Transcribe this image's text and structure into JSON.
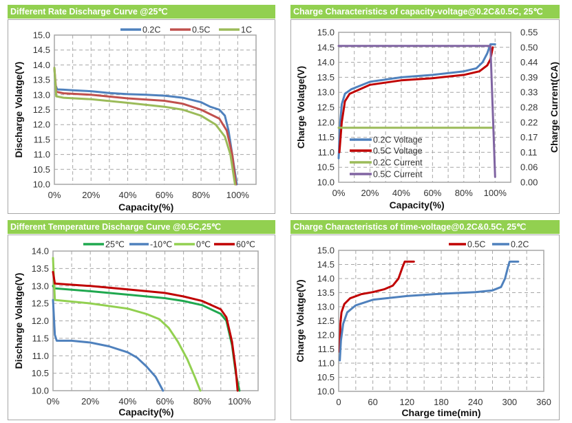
{
  "colors": {
    "header_bg": "#92d050",
    "blue": "#4f81bd",
    "red": "#c00000",
    "light_red": "#c0504d",
    "green": "#9bbb59",
    "purple": "#8064a2",
    "dark_green": "#1fa84f",
    "light_green": "#92d050"
  },
  "chart_data": [
    {
      "type": "line",
      "title": "Different Rate Discharge Curve @25℃",
      "xlabel": "Capacity(%)",
      "ylabel": "Discharge Volatge(V)",
      "xlim": [
        0,
        110
      ],
      "ylim": [
        10,
        15
      ],
      "xticks": [
        "0%",
        "20%",
        "40%",
        "60%",
        "80%",
        "100%"
      ],
      "yticks": [
        "10.0",
        "10.5",
        "11.0",
        "11.5",
        "12.0",
        "12.5",
        "13.0",
        "13.5",
        "14.0",
        "14.5",
        "15.0"
      ],
      "grid": true,
      "legend": "top",
      "series": [
        {
          "name": "0.2C",
          "color": "#4f81bd",
          "points": [
            [
              0,
              13.9
            ],
            [
              0.5,
              13.35
            ],
            [
              1.5,
              13.18
            ],
            [
              5,
              13.17
            ],
            [
              10,
              13.15
            ],
            [
              20,
              13.12
            ],
            [
              30,
              13.06
            ],
            [
              40,
              13.02
            ],
            [
              50,
              13.0
            ],
            [
              60,
              12.97
            ],
            [
              70,
              12.9
            ],
            [
              80,
              12.75
            ],
            [
              85,
              12.6
            ],
            [
              90,
              12.5
            ],
            [
              93,
              12.3
            ],
            [
              95,
              11.8
            ],
            [
              97,
              11.0
            ],
            [
              99.5,
              10.0
            ]
          ]
        },
        {
          "name": "0.5C",
          "color": "#c0504d",
          "points": [
            [
              0,
              13.9
            ],
            [
              1,
              13.1
            ],
            [
              5,
              13.05
            ],
            [
              20,
              13.0
            ],
            [
              40,
              12.88
            ],
            [
              60,
              12.8
            ],
            [
              70,
              12.7
            ],
            [
              80,
              12.5
            ],
            [
              90,
              12.2
            ],
            [
              94,
              11.8
            ],
            [
              97,
              11.0
            ],
            [
              99,
              10.0
            ]
          ]
        },
        {
          "name": "1C",
          "color": "#9bbb59",
          "points": [
            [
              0,
              13.9
            ],
            [
              1,
              12.95
            ],
            [
              5,
              12.9
            ],
            [
              20,
              12.85
            ],
            [
              40,
              12.73
            ],
            [
              60,
              12.6
            ],
            [
              70,
              12.5
            ],
            [
              80,
              12.3
            ],
            [
              88,
              12.0
            ],
            [
              93,
              11.6
            ],
            [
              96,
              11.0
            ],
            [
              98.5,
              10.0
            ]
          ]
        }
      ]
    },
    {
      "type": "line",
      "title": "Charge  Characteristics of capacity-voltage@0.2C&0.5C, 25℃",
      "xlabel": "Capacity(%)",
      "ylabel": "Charge Volatge(V)",
      "y2label": "Charge Current(CA)",
      "xlim": [
        0,
        110
      ],
      "ylim": [
        10,
        15
      ],
      "y2lim": [
        0,
        0.55
      ],
      "xticks": [
        "0%",
        "20%",
        "40%",
        "60%",
        "80%",
        "100%"
      ],
      "yticks": [
        "10.0",
        "10.5",
        "11.0",
        "11.5",
        "12.0",
        "12.5",
        "13.0",
        "13.5",
        "14.0",
        "14.5",
        "15.0"
      ],
      "y2ticks": [
        "0.00",
        "0.06",
        "0.11",
        "0.17",
        "0.22",
        "0.28",
        "0.33",
        "0.39",
        "0.44",
        "0.50",
        "0.55"
      ],
      "grid": true,
      "legend": "bottom-left",
      "series": [
        {
          "name": "0.2C Voltage",
          "color": "#4f81bd",
          "axis": "left",
          "points": [
            [
              0,
              10.8
            ],
            [
              1,
              12.0
            ],
            [
              2,
              12.6
            ],
            [
              4,
              12.95
            ],
            [
              8,
              13.1
            ],
            [
              20,
              13.35
            ],
            [
              40,
              13.5
            ],
            [
              60,
              13.58
            ],
            [
              80,
              13.7
            ],
            [
              88,
              13.8
            ],
            [
              92,
              14.0
            ],
            [
              95,
              14.3
            ],
            [
              97,
              14.6
            ],
            [
              100,
              14.6
            ]
          ]
        },
        {
          "name": "0.5C Voltage",
          "color": "#c00000",
          "axis": "left",
          "points": [
            [
              0.5,
              11.0
            ],
            [
              2,
              12.0
            ],
            [
              4,
              12.7
            ],
            [
              7,
              12.95
            ],
            [
              20,
              13.25
            ],
            [
              40,
              13.4
            ],
            [
              60,
              13.47
            ],
            [
              80,
              13.58
            ],
            [
              90,
              13.7
            ],
            [
              95,
              13.9
            ],
            [
              97,
              14.1
            ],
            [
              98.5,
              14.5
            ]
          ]
        },
        {
          "name": "0.2C Current",
          "color": "#9bbb59",
          "axis": "right",
          "points": [
            [
              0,
              0.2
            ],
            [
              98,
              0.2
            ]
          ]
        },
        {
          "name": "0.5C Current",
          "color": "#8064a2",
          "axis": "right",
          "points": [
            [
              0,
              0.5
            ],
            [
              97,
              0.5
            ],
            [
              100,
              0.02
            ]
          ]
        }
      ]
    },
    {
      "type": "line",
      "title": "Different Temperature Discharge Curve @0.5C,25℃",
      "xlabel": "Capacity(%)",
      "ylabel": "Discharge Volatge(V)",
      "xlim": [
        0,
        110
      ],
      "ylim": [
        10,
        14
      ],
      "xticks": [
        "0%",
        "20%",
        "40%",
        "60%",
        "80%",
        "100%"
      ],
      "yticks": [
        "10.0",
        "10.5",
        "11.0",
        "11.5",
        "12.0",
        "12.5",
        "13.0",
        "13.5",
        "14.0"
      ],
      "grid": true,
      "legend": "top",
      "series": [
        {
          "name": "25℃",
          "color": "#1fa84f",
          "points": [
            [
              0,
              13.0
            ],
            [
              1,
              12.93
            ],
            [
              20,
              12.85
            ],
            [
              40,
              12.75
            ],
            [
              60,
              12.65
            ],
            [
              70,
              12.57
            ],
            [
              80,
              12.45
            ],
            [
              90,
              12.2
            ],
            [
              93,
              12.0
            ],
            [
              96,
              11.3
            ],
            [
              98,
              10.5
            ],
            [
              100,
              10.0
            ]
          ]
        },
        {
          "name": "-10℃",
          "color": "#4f81bd",
          "points": [
            [
              0,
              12.6
            ],
            [
              1,
              11.6
            ],
            [
              2,
              11.43
            ],
            [
              10,
              11.43
            ],
            [
              20,
              11.38
            ],
            [
              30,
              11.27
            ],
            [
              40,
              11.1
            ],
            [
              45,
              10.95
            ],
            [
              50,
              10.7
            ],
            [
              55,
              10.4
            ],
            [
              59,
              10.0
            ]
          ]
        },
        {
          "name": "0℃",
          "color": "#92d050",
          "points": [
            [
              0,
              13.8
            ],
            [
              1,
              12.6
            ],
            [
              20,
              12.5
            ],
            [
              40,
              12.35
            ],
            [
              50,
              12.2
            ],
            [
              57,
              12.05
            ],
            [
              62,
              11.8
            ],
            [
              67,
              11.4
            ],
            [
              72,
              10.9
            ],
            [
              76,
              10.4
            ],
            [
              79,
              10.0
            ]
          ]
        },
        {
          "name": "60℃",
          "color": "#c00000",
          "points": [
            [
              0,
              13.4
            ],
            [
              1,
              13.07
            ],
            [
              20,
              13.0
            ],
            [
              40,
              12.9
            ],
            [
              60,
              12.8
            ],
            [
              70,
              12.7
            ],
            [
              80,
              12.57
            ],
            [
              90,
              12.33
            ],
            [
              93,
              12.1
            ],
            [
              96,
              11.4
            ],
            [
              98,
              10.6
            ],
            [
              99,
              10.0
            ]
          ]
        }
      ]
    },
    {
      "type": "line",
      "title": "Charge  Characteristics of time-voltage@0.2C&0.5C, 25℃",
      "xlabel": "Charge time(min)",
      "ylabel": "Charge Volatge(V)",
      "xlim": [
        0,
        360
      ],
      "ylim": [
        10,
        15
      ],
      "xticks": [
        "0",
        "60",
        "120",
        "180",
        "240",
        "300",
        "360"
      ],
      "yticks": [
        "10.0",
        "10.5",
        "11.0",
        "11.5",
        "12.0",
        "12.5",
        "13.0",
        "13.5",
        "14.0",
        "14.5",
        "15.0"
      ],
      "grid": true,
      "legend": "top-right",
      "series": [
        {
          "name": "0.5C",
          "color": "#c00000",
          "points": [
            [
              2,
              11.4
            ],
            [
              3,
              12.4
            ],
            [
              5,
              12.8
            ],
            [
              10,
              13.1
            ],
            [
              20,
              13.3
            ],
            [
              40,
              13.45
            ],
            [
              60,
              13.52
            ],
            [
              80,
              13.62
            ],
            [
              95,
              13.75
            ],
            [
              105,
              14.0
            ],
            [
              112,
              14.4
            ],
            [
              116,
              14.6
            ],
            [
              132,
              14.6
            ]
          ]
        },
        {
          "name": "0.2C",
          "color": "#4f81bd",
          "points": [
            [
              2,
              11.1
            ],
            [
              4,
              11.8
            ],
            [
              8,
              12.4
            ],
            [
              15,
              12.8
            ],
            [
              30,
              13.05
            ],
            [
              60,
              13.25
            ],
            [
              120,
              13.38
            ],
            [
              180,
              13.46
            ],
            [
              240,
              13.52
            ],
            [
              270,
              13.58
            ],
            [
              285,
              13.7
            ],
            [
              292,
              14.0
            ],
            [
              297,
              14.4
            ],
            [
              300,
              14.6
            ],
            [
              315,
              14.6
            ]
          ]
        }
      ]
    }
  ]
}
